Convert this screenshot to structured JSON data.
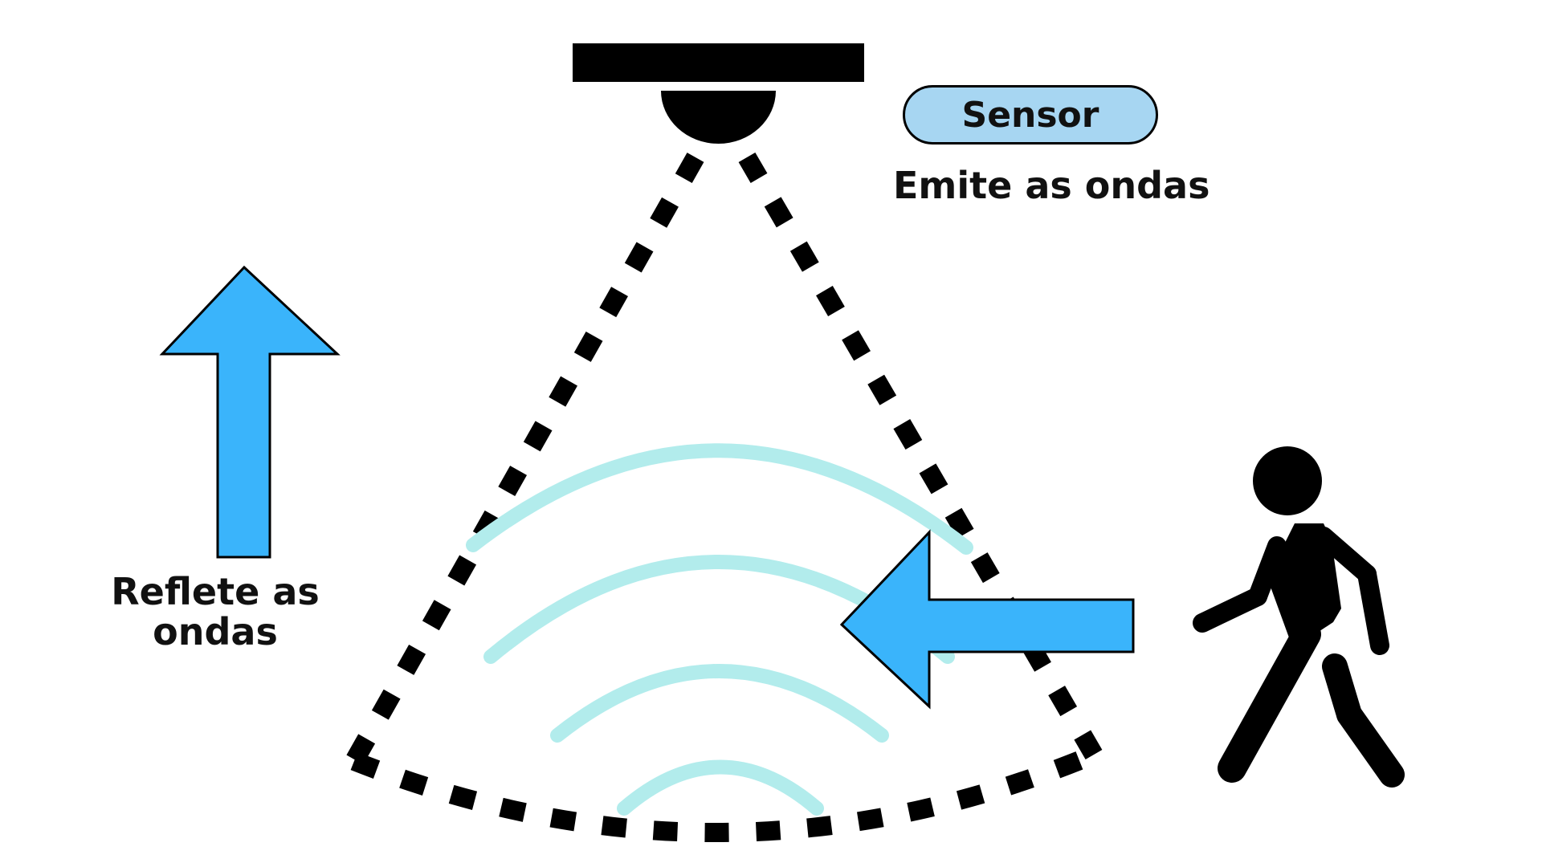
{
  "sensor": {
    "label": "Sensor",
    "caption": "Emite as ondas"
  },
  "reflection": {
    "caption": "Reflete as ondas"
  },
  "colors": {
    "pill_fill": "#a7d6f2",
    "arrow_fill": "#3ab4fb",
    "wave_stroke": "#b2ecec",
    "dark": "#000000"
  },
  "icons": {
    "person": "person-walking-icon",
    "up_arrow": "arrow-up-icon",
    "left_arrow": "arrow-left-icon",
    "sensor_device": "ceiling-sensor-icon"
  }
}
